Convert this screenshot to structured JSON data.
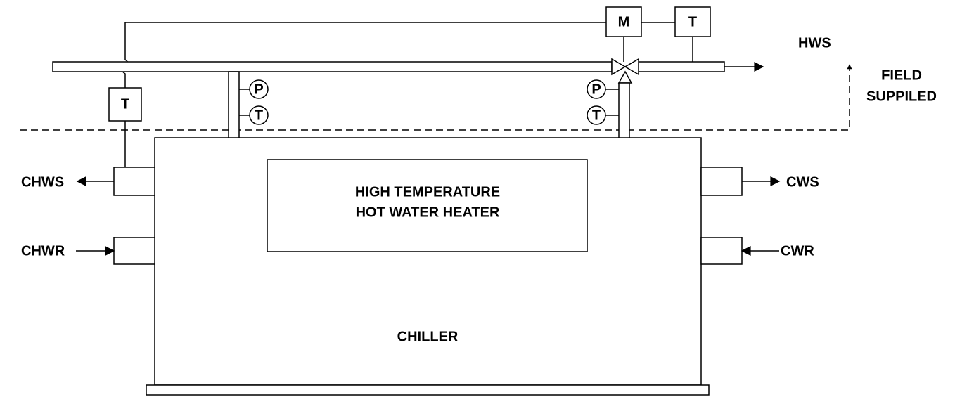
{
  "controls": {
    "motor": "M",
    "supply_sensor": "T",
    "chilled_sensor": "T"
  },
  "heater_inlet": {
    "pressure": "P",
    "temperature": "T"
  },
  "heater_outlet": {
    "pressure": "P",
    "temperature": "T"
  },
  "hot_water_supply": "HWS",
  "field_supplied": [
    "FIELD",
    "SUPPILED"
  ],
  "heater": [
    "HIGH TEMPERATURE",
    "HOT WATER HEATER"
  ],
  "chiller": "CHILLER",
  "connections": {
    "chws": "CHWS",
    "chwr": "CHWR",
    "cws": "CWS",
    "cwr": "CWR"
  }
}
